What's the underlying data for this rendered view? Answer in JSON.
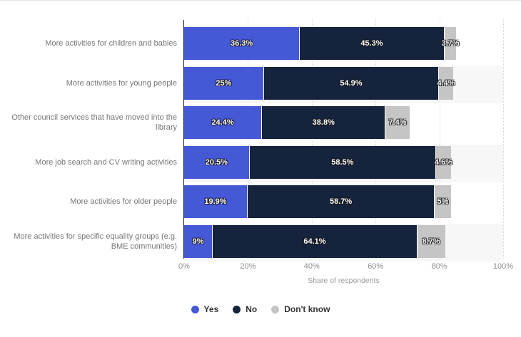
{
  "chart_data": {
    "type": "bar",
    "orientation": "horizontal",
    "stacked": true,
    "title": "",
    "xlabel": "Share of respondents",
    "ylabel": "",
    "xlim": [
      0,
      100
    ],
    "x_ticks": [
      "0%",
      "20%",
      "40%",
      "60%",
      "80%",
      "100%"
    ],
    "grid": "vertical-dotted",
    "legend_position": "bottom-center",
    "categories": [
      "More activities for children and babies",
      "More activities for young people",
      "Other council services that have moved into the library",
      "More job search and CV writing activities",
      "More activities for older people",
      "More activities for specific equality groups (e.g. BME communities)"
    ],
    "series": [
      {
        "name": "Yes",
        "color": "#4558d6",
        "values": [
          36.3,
          25,
          24.4,
          20.5,
          19.9,
          9
        ],
        "labels": [
          "36.3%",
          "25%",
          "24.4%",
          "20.5%",
          "19.9%",
          "9%"
        ]
      },
      {
        "name": "No",
        "color": "#15233c",
        "values": [
          45.3,
          54.9,
          38.8,
          58.5,
          58.7,
          64.1
        ],
        "labels": [
          "45.3%",
          "54.9%",
          "38.8%",
          "58.5%",
          "58.7%",
          "64.1%"
        ]
      },
      {
        "name": "Don't know",
        "color": "#c5c5c5",
        "values": [
          3.7,
          4.4,
          7.4,
          4.6,
          5,
          8.7
        ],
        "labels": [
          "3.7%",
          "4.4%",
          "7.4%",
          "4.6%",
          "5%",
          "8.7%"
        ]
      }
    ]
  },
  "colors": {
    "background": "#ffffff",
    "row_band": "#f7f7f7",
    "gridline": "#d6d6d6",
    "axis_line": "#1f1f1f",
    "category_label": "#767676",
    "tick_label": "#8d8d8d",
    "axis_title": "#9b9b9b",
    "legend_text": "#333333",
    "value_label_text": "#ffffff"
  }
}
